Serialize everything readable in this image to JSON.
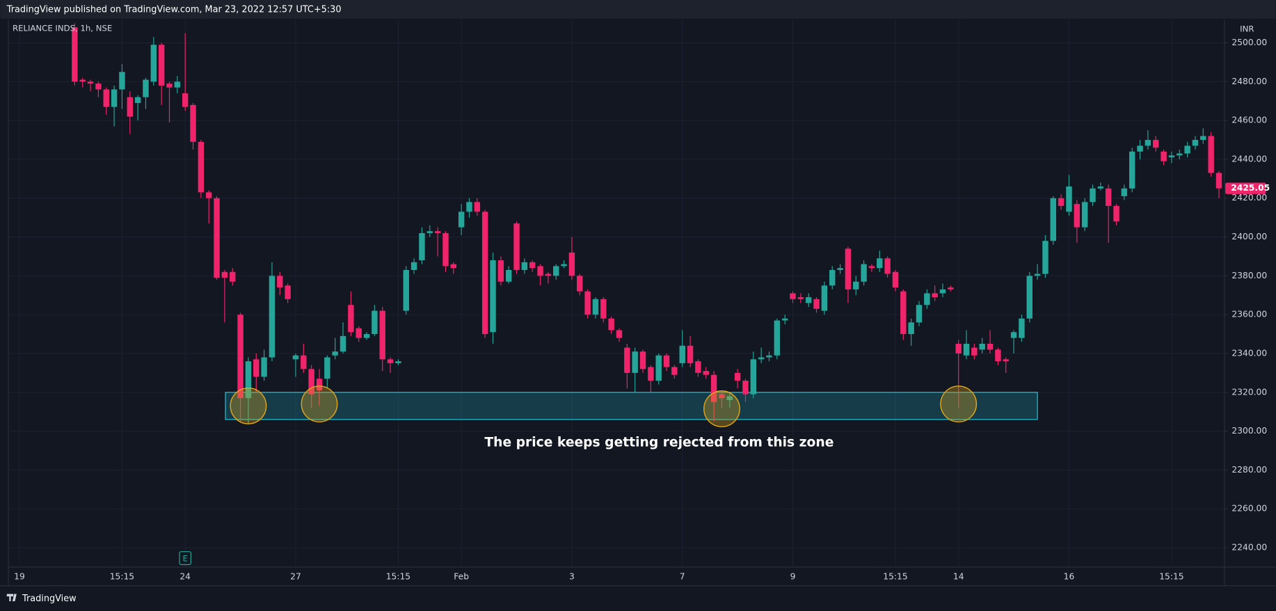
{
  "header": "TradingView published on TradingView.com, Mar 23, 2022 12:57 UTC+5:30",
  "footer": "TradingView",
  "chart_data": {
    "type": "candlestick",
    "symbol": "RELIANCE INDS, 1h, NSE",
    "currency": "INR",
    "annotation": "The price keeps getting rejected from this zone",
    "up_color": "#26a69a",
    "down_color": "#f0246a",
    "zone_color": "#26c6da",
    "grid": true,
    "xlim": [
      -1.4,
      152.7
    ],
    "ylim": [
      2230,
      2512
    ],
    "yticks": [
      {
        "value": 2240,
        "label": "2240.00"
      },
      {
        "value": 2260,
        "label": "2260.00"
      },
      {
        "value": 2280,
        "label": "2280.00"
      },
      {
        "value": 2300,
        "label": "2300.00"
      },
      {
        "value": 2320,
        "label": "2320.00"
      },
      {
        "value": 2340,
        "label": "2340.00"
      },
      {
        "value": 2360,
        "label": "2360.00"
      },
      {
        "value": 2380,
        "label": "2380.00"
      },
      {
        "value": 2400,
        "label": "2400.00"
      },
      {
        "value": 2420,
        "label": "2420.00"
      },
      {
        "value": 2440,
        "label": "2440.00"
      },
      {
        "value": 2460,
        "label": "2460.00"
      },
      {
        "value": 2480,
        "label": "2480.00"
      },
      {
        "value": 2500,
        "label": "2500.00"
      }
    ],
    "xticks": [
      {
        "value": 0,
        "label": "19"
      },
      {
        "value": 13,
        "label": "15:15"
      },
      {
        "value": 21,
        "label": "24"
      },
      {
        "value": 35,
        "label": "27"
      },
      {
        "value": 48,
        "label": "15:15"
      },
      {
        "value": 56,
        "label": "Feb"
      },
      {
        "value": 70,
        "label": "3"
      },
      {
        "value": 84,
        "label": "7"
      },
      {
        "value": 98,
        "label": "9"
      },
      {
        "value": 111,
        "label": "15:15"
      },
      {
        "value": 119,
        "label": "14"
      },
      {
        "value": 133,
        "label": "16"
      },
      {
        "value": 146,
        "label": "15:15"
      }
    ],
    "zone": {
      "x0": 26.1,
      "x1": 129,
      "top": 2320,
      "bottom": 2306
    },
    "circles": [
      {
        "index": 29,
        "price": 2313
      },
      {
        "index": 38,
        "price": 2314
      },
      {
        "index": 89,
        "price": 2311.5
      },
      {
        "index": 119,
        "price": 2314
      }
    ],
    "earnings": {
      "index": 21,
      "label": "E"
    },
    "open": [
      null,
      null,
      null,
      null,
      null,
      null,
      null,
      2508,
      2481,
      2480,
      2479,
      2476,
      2467,
      2476,
      2472,
      2469,
      2472,
      2480,
      2499,
      2479,
      2477,
      2474,
      2468,
      2449,
      2423,
      2420,
      2382,
      2382,
      2360,
      2317,
      2337,
      2328,
      2338,
      2380,
      2375,
      2337,
      2339,
      2332,
      2327,
      2327,
      2339,
      2341,
      2365,
      2353,
      2348,
      2350,
      2362,
      2337,
      2335,
      2362,
      2383,
      2388,
      2402,
      2403,
      2402,
      2386,
      2405,
      2413,
      2418,
      2413,
      2351,
      2388,
      2377,
      2407,
      2383,
      2387,
      2385,
      2381,
      2380,
      2385,
      2392,
      2380,
      2372,
      2360,
      2368,
      2358,
      2352,
      2343,
      2330,
      2341,
      2333,
      2326,
      2339,
      2333,
      2335,
      2344,
      2336,
      2331,
      2329,
      2319,
      2316,
      2330,
      2326,
      2319,
      2337,
      2338,
      2339,
      2357,
      2371,
      2369,
      2366,
      2368,
      2362,
      2375,
      2383,
      2394,
      2373,
      2377,
      2385,
      2384,
      2389,
      2382,
      2372,
      2350,
      2356,
      2365,
      2371,
      2371,
      2374,
      2345,
      2339,
      2343,
      2342,
      2345,
      2342,
      2337,
      2348,
      2348,
      2358,
      2380,
      2381,
      2398,
      2420,
      2413,
      2417,
      2405,
      2418,
      2425,
      2425,
      2416,
      2421,
      2425,
      2444,
      2447,
      2450,
      2444,
      2441,
      2442,
      2443,
      2447,
      2450,
      2452,
      2433
    ],
    "high": [
      null,
      null,
      null,
      null,
      null,
      null,
      null,
      2510,
      2482,
      2481,
      2480,
      2477,
      2478,
      2489,
      2475,
      2473,
      2482,
      2503,
      2500,
      2480,
      2483,
      2505,
      2469,
      2450,
      2424,
      2421,
      2383,
      2384,
      2361,
      2338,
      2340,
      2342,
      2387,
      2382,
      2376,
      2340,
      2345,
      2334,
      2332,
      2339,
      2348,
      2356,
      2372,
      2354,
      2351,
      2365,
      2364,
      2338,
      2337,
      2385,
      2389,
      2405,
      2406,
      2405,
      2403,
      2387,
      2417,
      2420,
      2420,
      2414,
      2392,
      2390,
      2385,
      2408,
      2389,
      2388,
      2386,
      2382,
      2386,
      2388,
      2400,
      2381,
      2373,
      2369,
      2369,
      2359,
      2353,
      2345,
      2343,
      2342,
      2334,
      2340,
      2340,
      2334,
      2352,
      2349,
      2337,
      2333,
      2331,
      2321,
      2320,
      2332,
      2327,
      2341,
      2343,
      2341,
      2358,
      2360,
      2372,
      2371,
      2371,
      2369,
      2377,
      2385,
      2386,
      2395,
      2380,
      2388,
      2386,
      2393,
      2390,
      2383,
      2373,
      2358,
      2367,
      2373,
      2375,
      2376,
      2375,
      2347,
      2352,
      2345,
      2348,
      2352,
      2343,
      2338,
      2352,
      2360,
      2382,
      2386,
      2401,
      2421,
      2422,
      2432,
      2419,
      2420,
      2427,
      2428,
      2427,
      2417,
      2427,
      2446,
      2450,
      2455,
      2452,
      2445,
      2444,
      2445,
      2449,
      2452,
      2456,
      2454,
      2434
    ],
    "low": [
      null,
      null,
      null,
      null,
      null,
      null,
      null,
      2478,
      2477,
      2475,
      2472,
      2463,
      2457,
      2466,
      2453,
      2460,
      2466,
      2478,
      2468,
      2459,
      2474,
      2465,
      2445,
      2420,
      2407,
      2378,
      2356,
      2375,
      2305,
      2304,
      2320,
      2326,
      2336,
      2370,
      2366,
      2328,
      2330,
      2312,
      2313,
      2322,
      2337,
      2340,
      2349,
      2346,
      2347,
      2349,
      2331,
      2330,
      2334,
      2360,
      2381,
      2386,
      2400,
      2390,
      2382,
      2381,
      2401,
      2410,
      2411,
      2348,
      2345,
      2375,
      2376,
      2381,
      2381,
      2382,
      2375,
      2376,
      2378,
      2384,
      2378,
      2370,
      2358,
      2358,
      2356,
      2350,
      2346,
      2322,
      2320,
      2330,
      2320,
      2324,
      2331,
      2327,
      2333,
      2333,
      2328,
      2327,
      2305,
      2312,
      2312,
      2322,
      2315,
      2317,
      2335,
      2336,
      2337,
      2355,
      2366,
      2366,
      2364,
      2361,
      2360,
      2373,
      2381,
      2366,
      2370,
      2375,
      2382,
      2382,
      2379,
      2372,
      2347,
      2344,
      2354,
      2363,
      2367,
      2369,
      2372,
      2312,
      2337,
      2337,
      2340,
      2340,
      2334,
      2330,
      2340,
      2346,
      2356,
      2378,
      2379,
      2396,
      2414,
      2411,
      2397,
      2403,
      2416,
      2424,
      2397,
      2406,
      2419,
      2423,
      2440,
      2445,
      2444,
      2437,
      2438,
      2440,
      2441,
      2445,
      2448,
      2431,
      2420
    ],
    "close": [
      null,
      null,
      null,
      null,
      null,
      null,
      null,
      2480,
      2480,
      2479,
      2476,
      2467,
      2476,
      2485,
      2462,
      2472,
      2481,
      2499,
      2478,
      2477,
      2480,
      2467,
      2449,
      2423,
      2420,
      2379,
      2379,
      2377,
      2317,
      2336,
      2328,
      2338,
      2380,
      2374,
      2368,
      2339,
      2332,
      2319,
      2321,
      2338,
      2341,
      2349,
      2351,
      2348,
      2350,
      2362,
      2337,
      2335,
      2336,
      2383,
      2387,
      2402,
      2403,
      2402,
      2385,
      2384,
      2413,
      2418,
      2413,
      2350,
      2388,
      2377,
      2383,
      2383,
      2387,
      2384,
      2380,
      2380,
      2385,
      2386,
      2380,
      2372,
      2360,
      2368,
      2358,
      2352,
      2348,
      2330,
      2341,
      2332,
      2326,
      2339,
      2333,
      2329,
      2344,
      2335,
      2330,
      2329,
      2315,
      2317,
      2318,
      2326,
      2319,
      2337,
      2338,
      2339,
      2357,
      2358,
      2368,
      2368,
      2369,
      2363,
      2375,
      2383,
      2384,
      2373,
      2377,
      2386,
      2384,
      2389,
      2381,
      2374,
      2350,
      2356,
      2365,
      2371,
      2369,
      2373,
      2373,
      2340,
      2345,
      2339,
      2345,
      2342,
      2336,
      2336,
      2351,
      2358,
      2380,
      2381,
      2398,
      2420,
      2416,
      2426,
      2405,
      2418,
      2425,
      2426,
      2416,
      2408,
      2425,
      2444,
      2447,
      2450,
      2446,
      2439,
      2442,
      2443,
      2447,
      2450,
      2452,
      2433,
      2425.05
    ]
  }
}
